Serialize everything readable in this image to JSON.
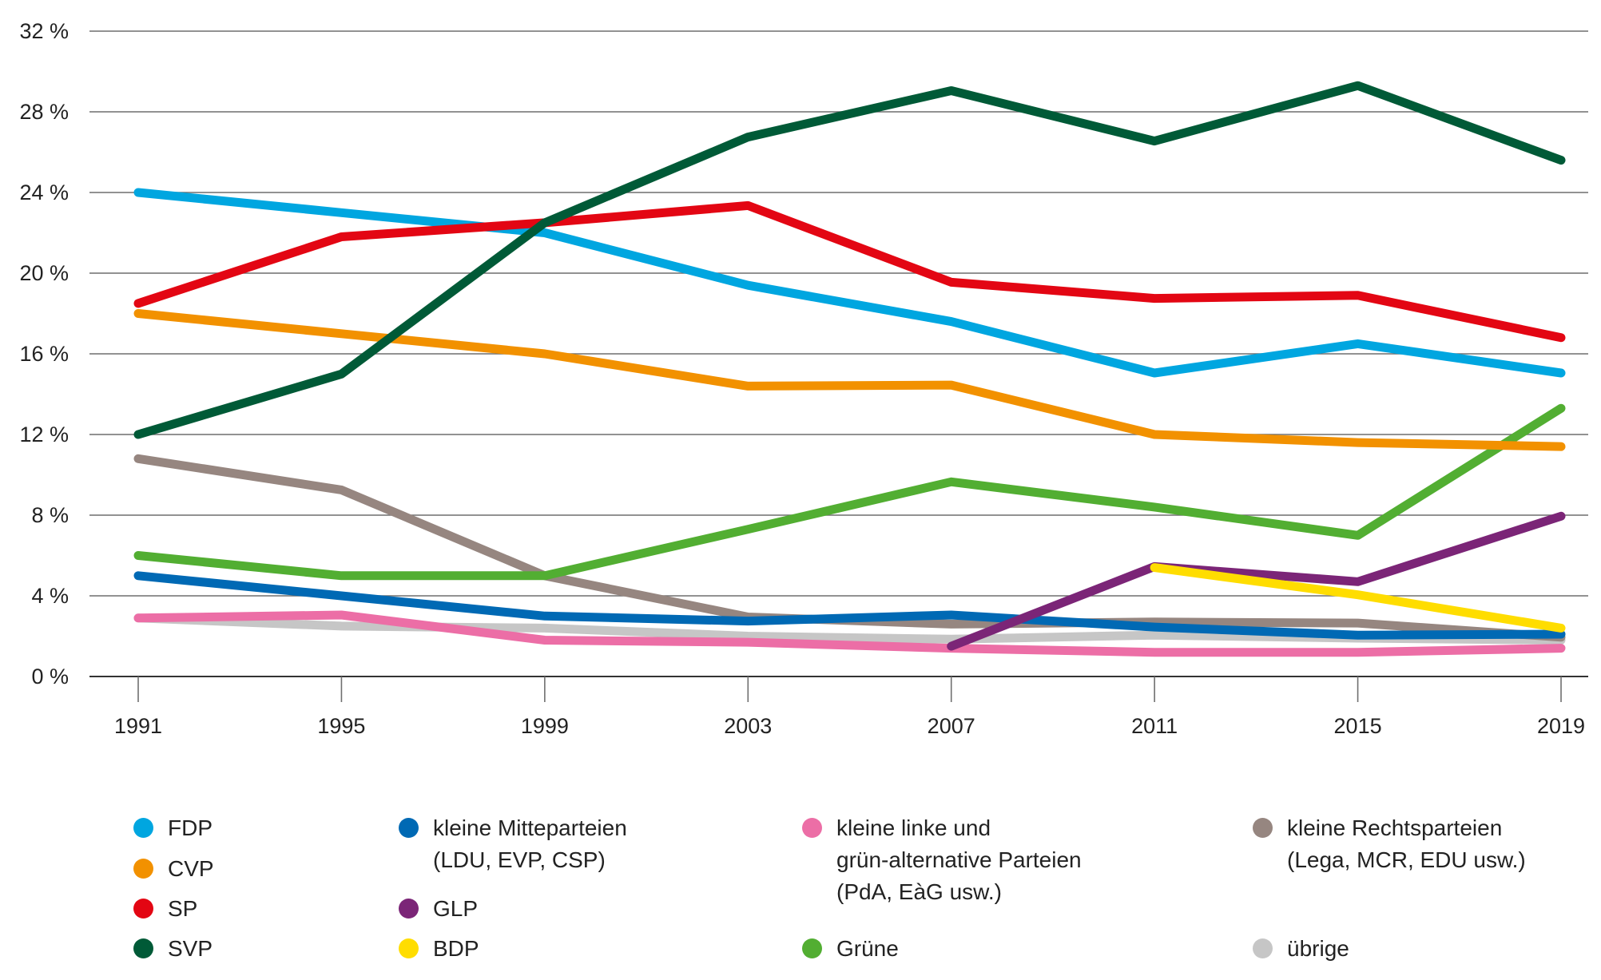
{
  "chart_data": {
    "type": "line",
    "title": "",
    "xlabel": "",
    "ylabel": "",
    "x": [
      1991,
      1995,
      1999,
      2003,
      2007,
      2011,
      2015,
      2019
    ],
    "x_tick_labels": [
      "1991",
      "1995",
      "1999",
      "2003",
      "2007",
      "2011",
      "2015",
      "2019"
    ],
    "ylim": [
      0,
      32
    ],
    "y_ticks": [
      0,
      4,
      8,
      12,
      16,
      20,
      24,
      28,
      32
    ],
    "y_tick_labels": [
      "0 %",
      "4 %",
      "8 %",
      "12 %",
      "16 %",
      "20 %",
      "24 %",
      "28 %",
      "32 %"
    ],
    "grid": true,
    "legend_position": "bottom",
    "series": [
      {
        "key": "uebrige",
        "name": "übrige",
        "color": "#c6c6c6",
        "values": [
          2.9,
          2.5,
          2.4,
          2.0,
          1.85,
          2.05,
          1.9,
          1.8
        ]
      },
      {
        "key": "rechts",
        "name": "kleine Rechtsparteien\n(Lega, MCR, EDU usw.)",
        "color": "#968680",
        "values": [
          10.8,
          9.25,
          5.0,
          2.95,
          2.6,
          2.7,
          2.65,
          1.95
        ]
      },
      {
        "key": "links",
        "name": "kleine linke und\ngrün-alternative Parteien\n(PdA, EàG usw.)",
        "color": "#ec6ea6",
        "values": [
          2.9,
          3.05,
          1.8,
          1.7,
          1.4,
          1.2,
          1.2,
          1.4
        ]
      },
      {
        "key": "mitte",
        "name": "kleine Mitteparteien\n(LDU, EVP, CSP)",
        "color": "#0069b4",
        "values": [
          5.0,
          4.0,
          3.0,
          2.75,
          3.05,
          2.45,
          2.05,
          2.1
        ]
      },
      {
        "key": "gruene",
        "name": "Grüne",
        "color": "#52ae32",
        "values": [
          6.0,
          5.0,
          5.0,
          7.3,
          9.65,
          8.4,
          7.0,
          13.3
        ]
      },
      {
        "key": "glp",
        "name": "GLP",
        "color": "#7b2577",
        "values": [
          null,
          null,
          null,
          null,
          1.5,
          5.45,
          4.7,
          7.95
        ]
      },
      {
        "key": "bdp",
        "name": "BDP",
        "color": "#ffdd00",
        "values": [
          null,
          null,
          null,
          null,
          null,
          5.4,
          4.05,
          2.4
        ]
      },
      {
        "key": "cvp",
        "name": "CVP",
        "color": "#f29100",
        "values": [
          18.0,
          17.0,
          16.0,
          14.4,
          14.45,
          12.0,
          11.6,
          11.4
        ]
      },
      {
        "key": "fdp",
        "name": "FDP",
        "color": "#00a6e0",
        "values": [
          24.0,
          23.0,
          22.0,
          19.4,
          17.6,
          15.05,
          16.5,
          15.05
        ]
      },
      {
        "key": "sp",
        "name": "SP",
        "color": "#e30613",
        "values": [
          18.5,
          21.8,
          22.5,
          23.35,
          19.55,
          18.75,
          18.9,
          16.8
        ]
      },
      {
        "key": "svp",
        "name": "SVP",
        "color": "#005a37",
        "values": [
          12.0,
          15.0,
          22.5,
          26.75,
          29.05,
          26.55,
          29.3,
          25.6
        ]
      }
    ]
  },
  "legend": {
    "columns": [
      [
        {
          "key": "fdp",
          "label": "FDP",
          "color": "#00a6e0"
        },
        {
          "key": "cvp",
          "label": "CVP",
          "color": "#f29100"
        },
        {
          "key": "sp",
          "label": "SP",
          "color": "#e30613"
        },
        {
          "key": "svp",
          "label": "SVP",
          "color": "#005a37"
        }
      ],
      [
        {
          "key": "mitte",
          "label": "kleine Mitteparteien\n(LDU, EVP, CSP)",
          "color": "#0069b4"
        },
        {
          "key": "glp",
          "label": "GLP",
          "color": "#7b2577"
        },
        {
          "key": "bdp",
          "label": "BDP",
          "color": "#ffdd00"
        }
      ],
      [
        {
          "key": "links",
          "label": "kleine linke und\ngrün-alternative Parteien\n(PdA, EàG usw.)",
          "color": "#ec6ea6"
        },
        {
          "key": "gruene",
          "label": "Grüne",
          "color": "#52ae32"
        }
      ],
      [
        {
          "key": "rechts",
          "label": "kleine Rechtsparteien\n(Lega, MCR, EDU usw.)",
          "color": "#968680"
        },
        {
          "key": "uebrige",
          "label": "übrige",
          "color": "#c6c6c6"
        }
      ]
    ]
  }
}
